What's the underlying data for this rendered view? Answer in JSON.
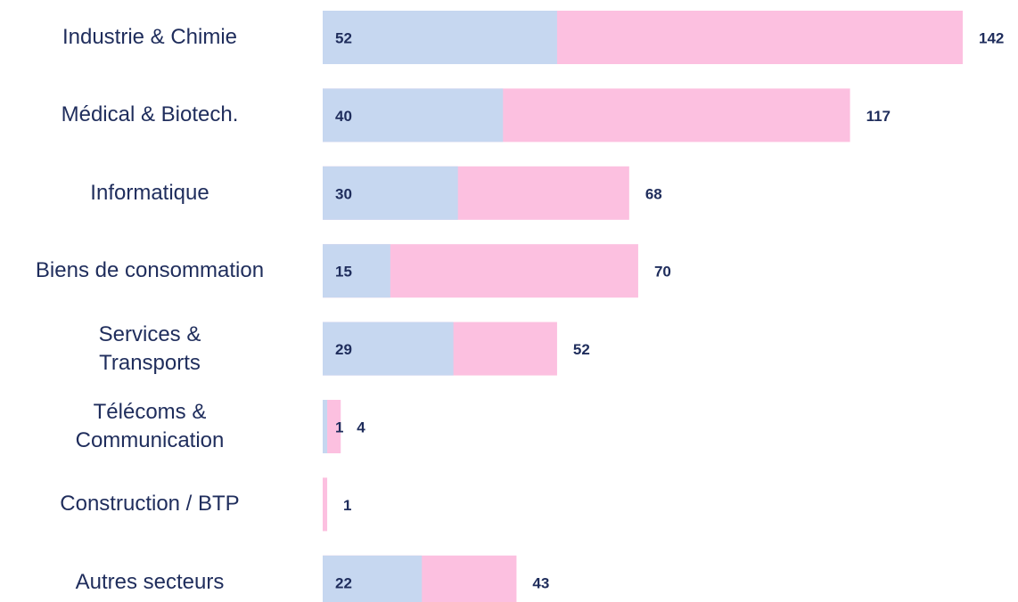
{
  "chart_data": {
    "type": "bar",
    "orientation": "horizontal",
    "categories": [
      "Industrie & Chimie",
      "Médical & Biotech.",
      "Informatique",
      "Biens de consommation",
      "Services &\nTransports",
      "Télécoms &\nCommunication",
      "Construction / BTP",
      "Autres secteurs"
    ],
    "series": [
      {
        "color": "#fcc0e0",
        "values": [
          142,
          117,
          68,
          70,
          52,
          4,
          1,
          43
        ]
      },
      {
        "color": "#c6d7f0",
        "values": [
          52,
          40,
          30,
          15,
          29,
          1,
          null,
          22
        ]
      }
    ]
  }
}
